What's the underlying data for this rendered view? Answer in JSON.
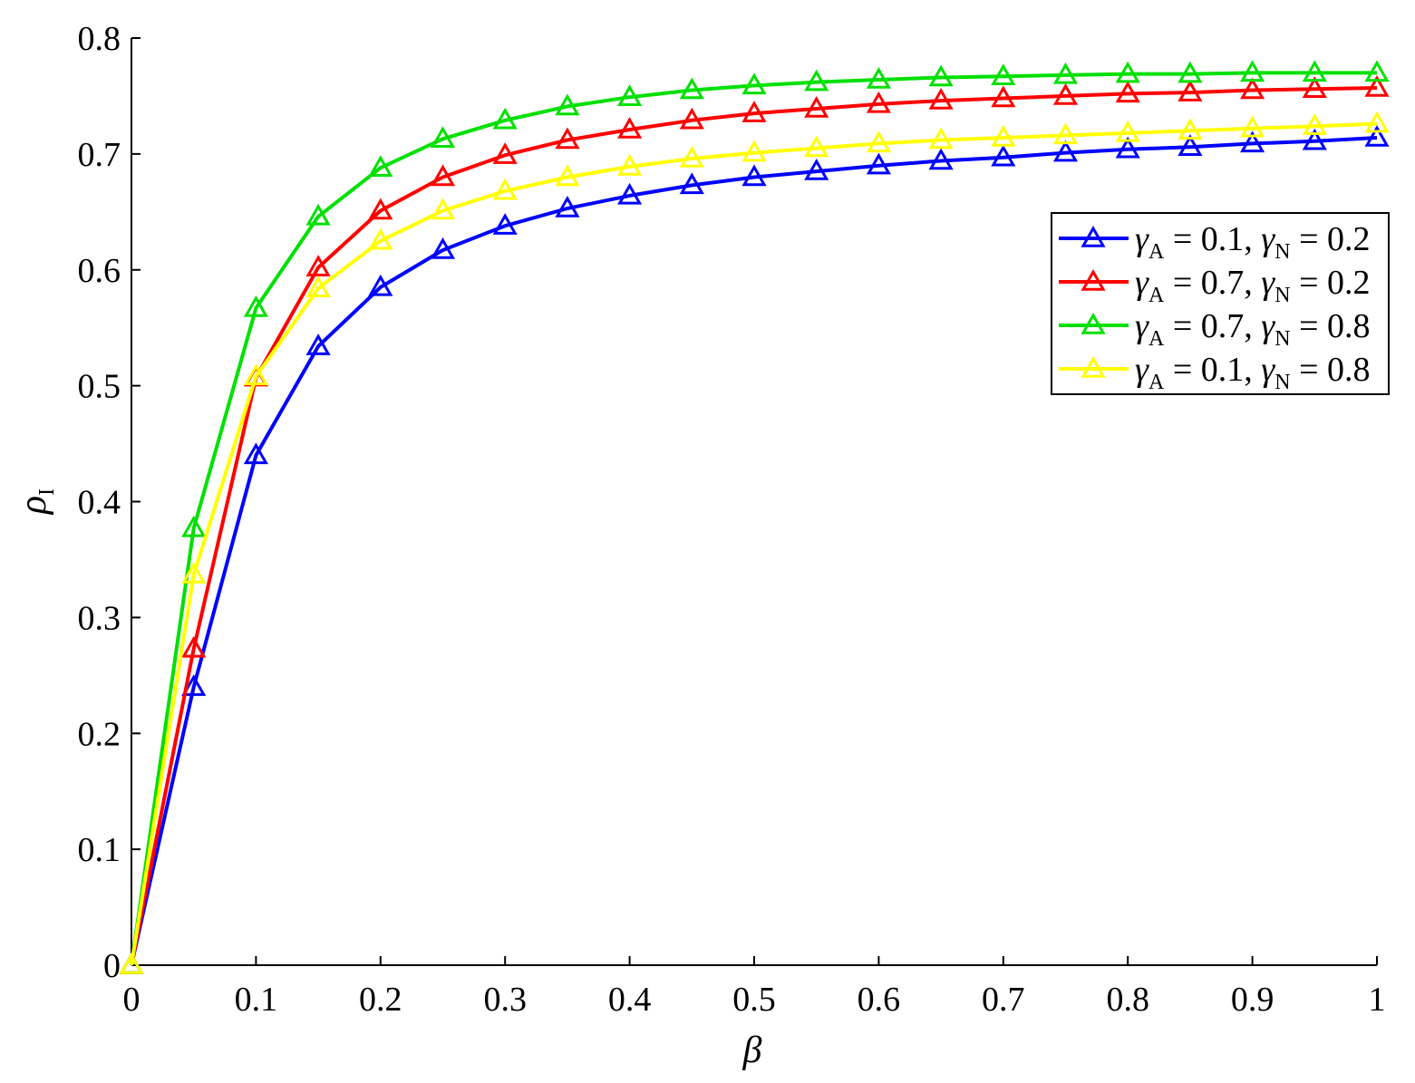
{
  "chart_data": {
    "type": "line",
    "xlabel": "β",
    "ylabel": {
      "main": "ρ",
      "sub": "I"
    },
    "xlim": [
      0,
      1
    ],
    "ylim": [
      0,
      0.8
    ],
    "x_ticks": [
      "0",
      "0.1",
      "0.2",
      "0.3",
      "0.4",
      "0.5",
      "0.6",
      "0.7",
      "0.8",
      "0.9",
      "1"
    ],
    "y_ticks": [
      "0",
      "0.1",
      "0.2",
      "0.3",
      "0.4",
      "0.5",
      "0.6",
      "0.7",
      "0.8"
    ],
    "grid": false,
    "legend_position": "top-right",
    "marker": "triangle",
    "x": [
      0,
      0.05,
      0.1,
      0.15,
      0.2,
      0.25,
      0.3,
      0.35,
      0.4,
      0.45,
      0.5,
      0.55,
      0.6,
      0.65,
      0.7,
      0.75,
      0.8,
      0.85,
      0.9,
      0.95,
      1.0
    ],
    "series": [
      {
        "color": "#0000ff",
        "legend": {
          "g1": "γ",
          "s1": "A",
          "mid": " = 0.1, ",
          "g2": "γ",
          "s2": "N",
          "end": " = 0.2"
        },
        "values": [
          0,
          0.24,
          0.44,
          0.534,
          0.585,
          0.617,
          0.638,
          0.653,
          0.664,
          0.673,
          0.68,
          0.685,
          0.69,
          0.694,
          0.697,
          0.701,
          0.704,
          0.706,
          0.709,
          0.711,
          0.714
        ]
      },
      {
        "color": "#ff0000",
        "legend": {
          "g1": "γ",
          "s1": "A",
          "mid": " = 0.7, ",
          "g2": "γ",
          "s2": "N",
          "end": " = 0.2"
        },
        "values": [
          0,
          0.273,
          0.507,
          0.602,
          0.651,
          0.68,
          0.699,
          0.712,
          0.721,
          0.729,
          0.735,
          0.739,
          0.743,
          0.746,
          0.748,
          0.75,
          0.752,
          0.753,
          0.755,
          0.756,
          0.757
        ]
      },
      {
        "color": "#00e000",
        "legend": {
          "g1": "γ",
          "s1": "A",
          "mid": " = 0.7, ",
          "g2": "γ",
          "s2": "N",
          "end": " = 0.8"
        },
        "values": [
          0,
          0.377,
          0.567,
          0.646,
          0.688,
          0.713,
          0.729,
          0.741,
          0.749,
          0.755,
          0.759,
          0.762,
          0.764,
          0.766,
          0.767,
          0.768,
          0.769,
          0.769,
          0.77,
          0.77,
          0.77
        ]
      },
      {
        "color": "#ffff00",
        "legend": {
          "g1": "γ",
          "s1": "A",
          "mid": " = 0.1, ",
          "g2": "γ",
          "s2": "N",
          "end": " = 0.8"
        },
        "values": [
          0,
          0.337,
          0.508,
          0.584,
          0.625,
          0.651,
          0.668,
          0.68,
          0.689,
          0.696,
          0.701,
          0.705,
          0.709,
          0.712,
          0.714,
          0.716,
          0.718,
          0.72,
          0.722,
          0.724,
          0.726
        ]
      }
    ]
  }
}
